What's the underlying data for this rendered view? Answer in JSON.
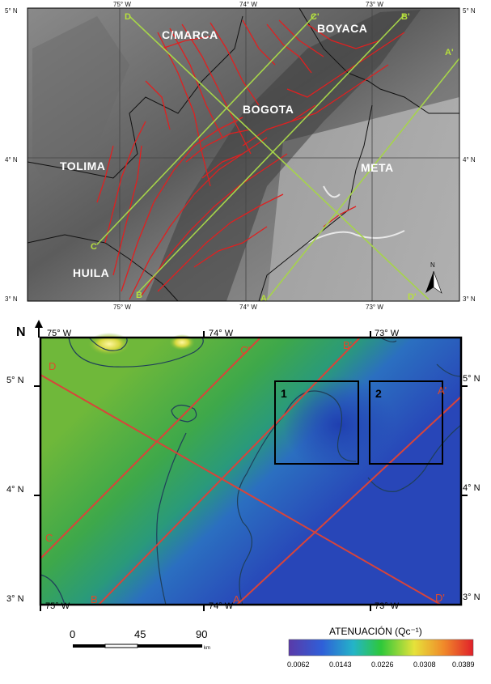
{
  "top_map": {
    "lon_ticks_top": [
      "75° W",
      "74° W",
      "73° W"
    ],
    "lon_ticks_bottom": [
      "75° W",
      "74° W",
      "73° W"
    ],
    "lat_ticks_left": [
      "5° N",
      "4° N",
      "3° N"
    ],
    "lat_ticks_right": [
      "5° N",
      "4° N",
      "3° N"
    ],
    "regions": {
      "cmarca": "C/MARCA",
      "boyaca": "BOYACA",
      "bogota": "BOGOTA",
      "tolima": "TOLIMA",
      "meta": "META",
      "huila": "HUILA"
    },
    "profile_ends": {
      "a_start": "A",
      "a_end": "A'",
      "b_start": "B",
      "b_end": "B'",
      "c_start": "C",
      "c_end": "C'",
      "d_start": "D",
      "d_end": "D'"
    },
    "north_label": "N",
    "colors": {
      "faults": "#e02020",
      "profiles": "#a6d44a"
    }
  },
  "bottom_map": {
    "north_label": "N",
    "lon_ticks_top": [
      "75° W",
      "74° W",
      "73° W"
    ],
    "lon_ticks_bottom": [
      "75° W",
      "74° W",
      "73° W"
    ],
    "lat_ticks_left": [
      "5° N",
      "4° N",
      "3° N"
    ],
    "lat_ticks_right": [
      "5° N",
      "4° N",
      "3° N"
    ],
    "profile_ends": {
      "a_start": "A",
      "a_end": "A'",
      "b_start": "B",
      "b_end": "B'",
      "c_start": "C",
      "c_end": "C'",
      "d_start": "D",
      "d_end": "D'"
    },
    "boxes": [
      "1",
      "2"
    ],
    "colors": {
      "profiles": "#d8443a",
      "contours": "#1f3f5a"
    }
  },
  "scale_bar": {
    "labels": [
      "0",
      "45",
      "90"
    ],
    "unit": "km"
  },
  "legend": {
    "title": "ATENUACIÓN (Qc⁻¹)",
    "ticks": [
      "0.0062",
      "0.0143",
      "0.0226",
      "0.0308",
      "0.0389"
    ],
    "colors": [
      "#5a3aa8",
      "#2f5fd8",
      "#24b4c8",
      "#2ec83a",
      "#e6e23a",
      "#f08a2a",
      "#e0202a"
    ]
  }
}
